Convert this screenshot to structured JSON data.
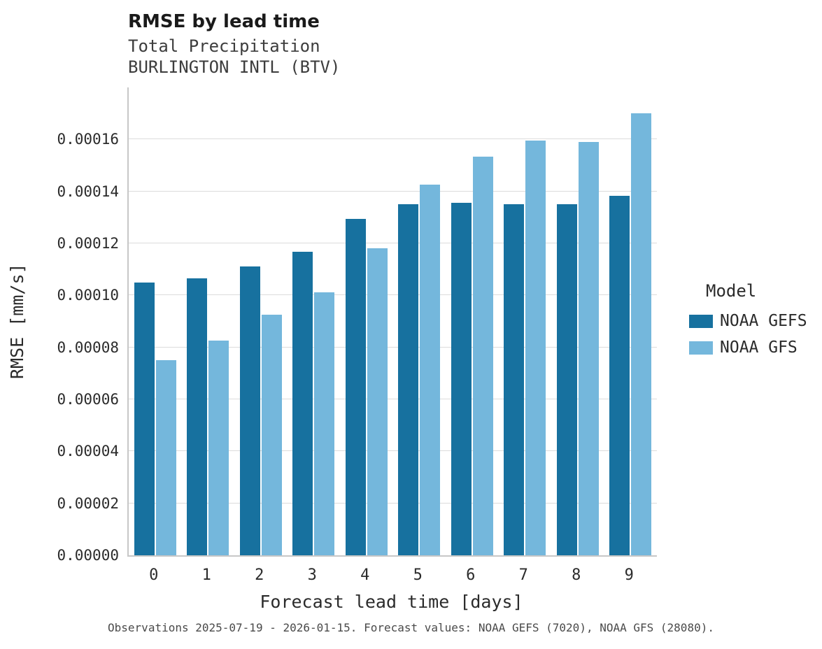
{
  "title": "RMSE by lead time",
  "subtitle1": "Total Precipitation",
  "subtitle2": "BURLINGTON INTL (BTV)",
  "caption": "Observations 2025-07-19 - 2026-01-15. Forecast values: NOAA GEFS (7020), NOAA GFS (28080).",
  "legend": {
    "title": "Model",
    "entries": [
      {
        "label": "NOAA GEFS",
        "color": "#17719f"
      },
      {
        "label": "NOAA GFS",
        "color": "#74b7dc"
      }
    ]
  },
  "chart_data": {
    "type": "bar",
    "title": "RMSE by lead time",
    "subtitle": "Total Precipitation — BURLINGTON INTL (BTV)",
    "xlabel": "Forecast lead time [days]",
    "ylabel": "RMSE [mm/s]",
    "categories": [
      "0",
      "1",
      "2",
      "3",
      "4",
      "5",
      "6",
      "7",
      "8",
      "9"
    ],
    "series": [
      {
        "name": "NOAA GEFS",
        "color": "#17719f",
        "values": [
          0.000105,
          0.0001065,
          0.000111,
          0.0001167,
          0.0001294,
          0.000135,
          0.0001356,
          0.000135,
          0.0001352,
          0.0001383
        ]
      },
      {
        "name": "NOAA GFS",
        "color": "#74b7dc",
        "values": [
          7.5e-05,
          8.25e-05,
          9.25e-05,
          0.0001012,
          0.000118,
          0.0001427,
          0.0001535,
          0.0001595,
          0.000159,
          0.0001701
        ]
      }
    ],
    "ylim": [
      0,
      0.00018
    ],
    "yticks": [
      {
        "value": 0,
        "label": "0.00000"
      },
      {
        "value": 2e-05,
        "label": "0.00002"
      },
      {
        "value": 4e-05,
        "label": "0.00004"
      },
      {
        "value": 6e-05,
        "label": "0.00006"
      },
      {
        "value": 8e-05,
        "label": "0.00008"
      },
      {
        "value": 0.0001,
        "label": "0.00010"
      },
      {
        "value": 0.00012,
        "label": "0.00012"
      },
      {
        "value": 0.00014,
        "label": "0.00014"
      },
      {
        "value": 0.00016,
        "label": "0.00016"
      }
    ],
    "grid": true,
    "legend_position": "right"
  }
}
